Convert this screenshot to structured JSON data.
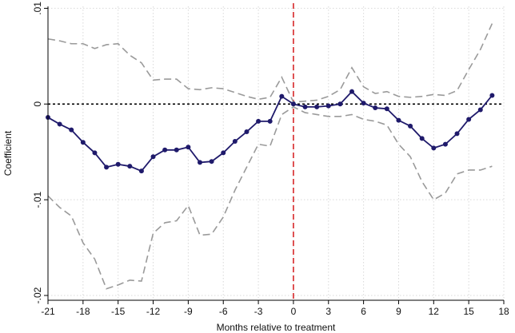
{
  "chart_data": {
    "type": "line",
    "xlabel": "Months relative to treatment",
    "ylabel": "Coefficient",
    "x_ticks": [
      -21,
      -18,
      -15,
      -12,
      -9,
      -6,
      -3,
      0,
      3,
      6,
      9,
      12,
      15,
      18
    ],
    "y_ticks": [
      0.01,
      0,
      -0.01,
      -0.02
    ],
    "y_tick_labels": [
      ".01",
      "0",
      "-.01",
      "-.02"
    ],
    "xlim": [
      -21,
      18
    ],
    "ylim": [
      -0.0205,
      0.0102
    ],
    "grid": true,
    "zero_line": true,
    "treatment_line_x": 0,
    "colors": {
      "estimate": "#1f1a6b",
      "ci": "#9a9a9a",
      "treatment": "#d62728",
      "zero": "#000000",
      "grid": "#d9d9d9"
    },
    "x": [
      -21,
      -20,
      -19,
      -18,
      -17,
      -16,
      -15,
      -14,
      -13,
      -12,
      -11,
      -10,
      -9,
      -8,
      -7,
      -6,
      -5,
      -4,
      -3,
      -2,
      -1,
      0,
      1,
      2,
      3,
      4,
      5,
      6,
      7,
      8,
      9,
      10,
      11,
      12,
      13,
      14,
      15,
      16,
      17
    ],
    "series": [
      {
        "role": "estimate",
        "values": [
          -0.0014,
          -0.0021,
          -0.0027,
          -0.004,
          -0.0051,
          -0.0066,
          -0.0063,
          -0.0065,
          -0.007,
          -0.0055,
          -0.0048,
          -0.0048,
          -0.0045,
          -0.0061,
          -0.006,
          -0.0051,
          -0.0039,
          -0.0029,
          -0.0018,
          -0.0018,
          0.0008,
          0.0,
          -0.0003,
          -0.0003,
          -0.0002,
          0.0,
          0.0013,
          0.0001,
          -0.0004,
          -0.0005,
          -0.0017,
          -0.0023,
          -0.0036,
          -0.0046,
          -0.0042,
          -0.0031,
          -0.0016,
          -0.0006,
          0.0009
        ]
      },
      {
        "role": "ci_upper",
        "values": [
          0.0068,
          0.0066,
          0.0063,
          0.0063,
          0.0058,
          0.0062,
          0.0063,
          0.0051,
          0.0043,
          0.0025,
          0.0026,
          0.0026,
          0.0016,
          0.0015,
          0.0017,
          0.0016,
          0.0012,
          0.0008,
          0.0005,
          0.0007,
          0.0028,
          0.0002,
          0.0003,
          0.0004,
          0.0008,
          0.0015,
          0.0038,
          0.0018,
          0.0011,
          0.0013,
          0.0008,
          0.0007,
          0.0008,
          0.001,
          0.0009,
          0.0014,
          0.0036,
          0.0057,
          0.0084
        ]
      },
      {
        "role": "ci_lower",
        "values": [
          -0.0096,
          -0.0108,
          -0.0117,
          -0.0145,
          -0.0162,
          -0.0193,
          -0.0189,
          -0.0184,
          -0.0185,
          -0.0135,
          -0.0124,
          -0.0122,
          -0.0106,
          -0.0137,
          -0.0136,
          -0.0118,
          -0.009,
          -0.0066,
          -0.0042,
          -0.0044,
          -0.0011,
          -0.0003,
          -0.0009,
          -0.0011,
          -0.0013,
          -0.0013,
          -0.0011,
          -0.0016,
          -0.0018,
          -0.0022,
          -0.0042,
          -0.0055,
          -0.0081,
          -0.01,
          -0.0093,
          -0.0073,
          -0.0069,
          -0.0069,
          -0.0065
        ]
      }
    ]
  }
}
